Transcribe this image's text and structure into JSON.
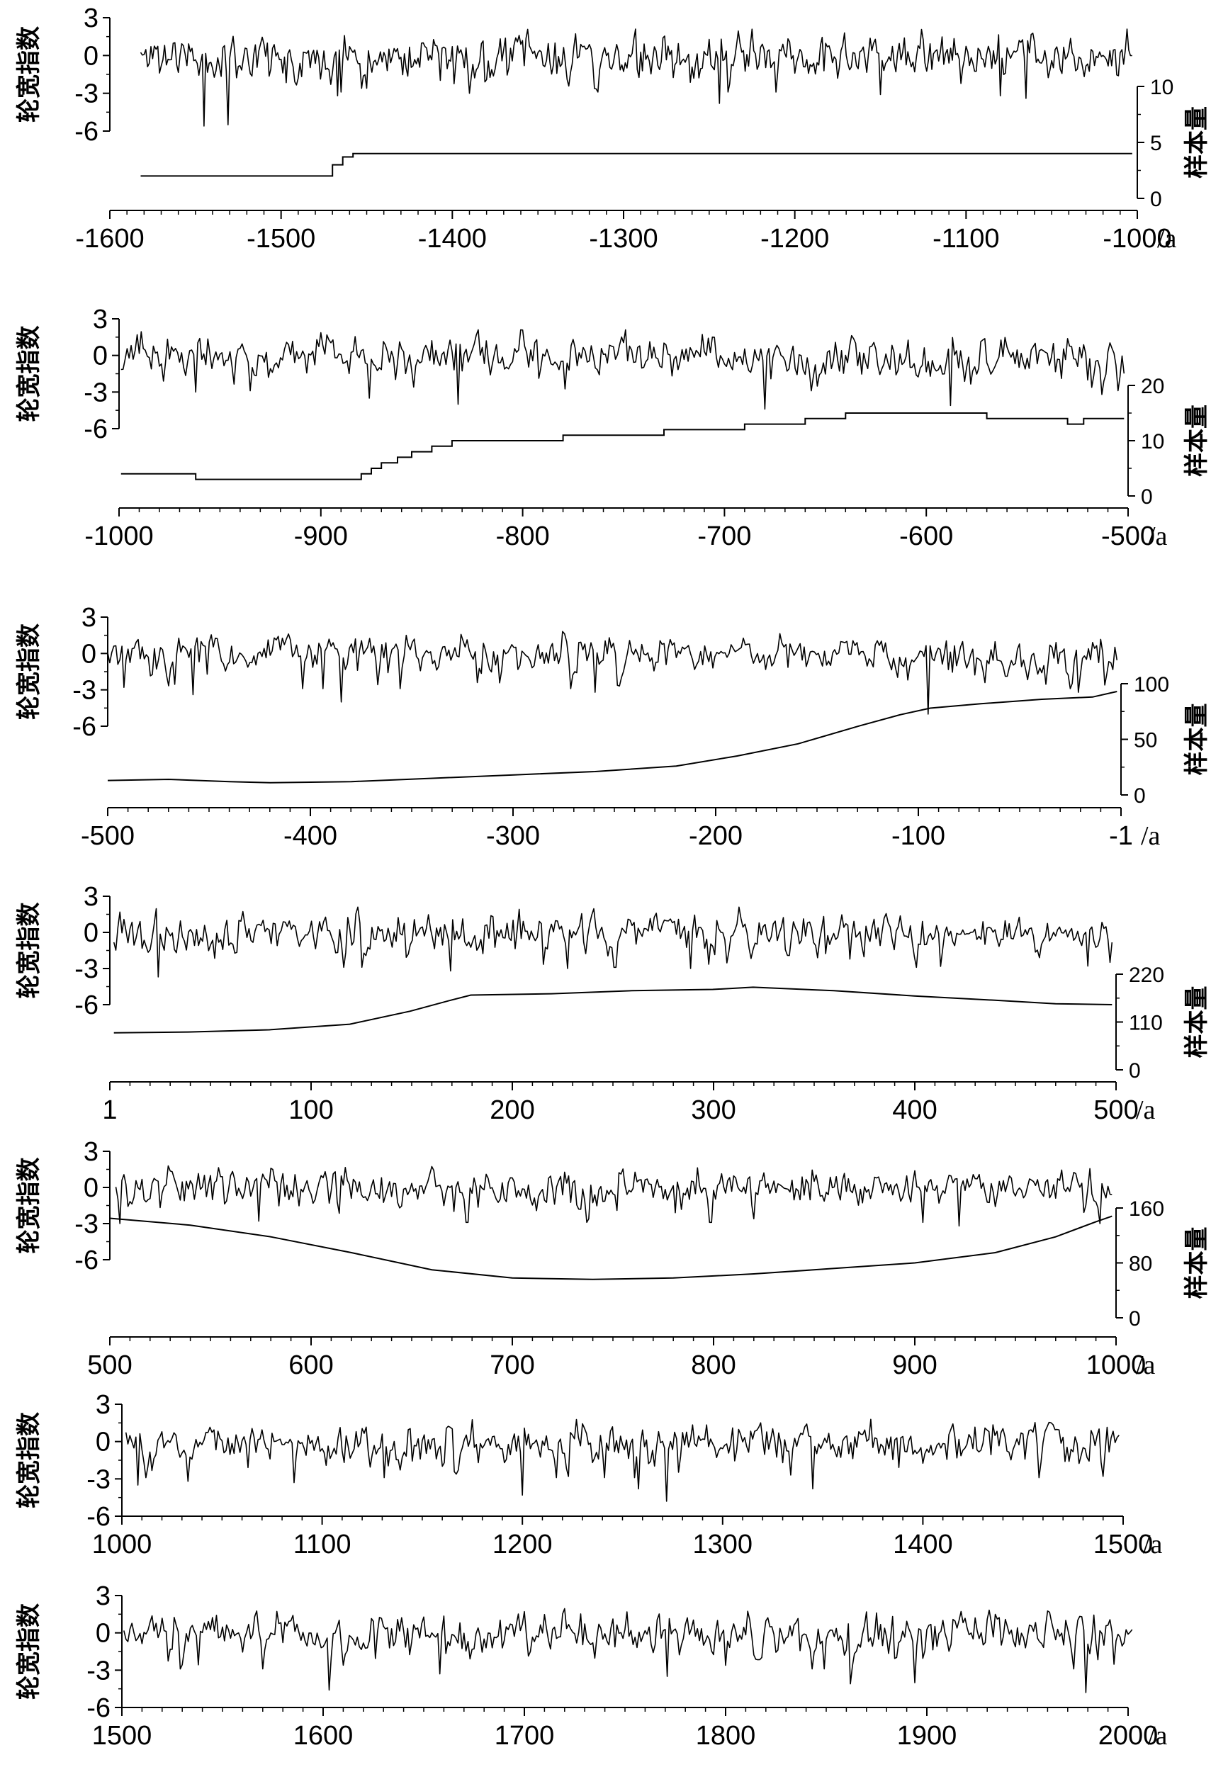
{
  "chart_data": [
    {
      "type": "line",
      "title": "",
      "xlabel": "/a",
      "x_range": [
        -1600,
        -1000
      ],
      "x_tick_labels": [
        "-1600",
        "-1500",
        "-1400",
        "-1300",
        "-1200",
        "-1100",
        "-1000"
      ],
      "series": [
        {
          "name": "轮宽指数",
          "axis": "left",
          "ylabel": "轮宽指数",
          "ylim": [
            -6,
            3
          ],
          "y_tick_labels": [
            "3",
            "0",
            "-3",
            "-6"
          ],
          "x_start": -1582,
          "x_end": -1003,
          "step": 1,
          "mean": 0,
          "std": 1.05,
          "seed": 11,
          "spikes": [
            [
              -1545,
              -5.6
            ],
            [
              -1531,
              -5.5
            ],
            [
              -1467,
              -3.2
            ],
            [
              -1390,
              -3.0
            ],
            [
              -1244,
              -3.8
            ],
            [
              -1150,
              -3.1
            ],
            [
              -1080,
              -3.2
            ],
            [
              -1065,
              -3.4
            ]
          ]
        },
        {
          "name": "样本量",
          "axis": "right",
          "ylabel": "样本量",
          "ylim": [
            0,
            10
          ],
          "y_tick_labels": [
            "10",
            "5",
            "0"
          ],
          "points": [
            [
              -1582,
              2
            ],
            [
              -1470,
              2
            ],
            [
              -1470,
              3
            ],
            [
              -1464,
              3
            ],
            [
              -1464,
              3.7
            ],
            [
              -1458,
              3.7
            ],
            [
              -1458,
              4
            ],
            [
              -1003,
              4
            ]
          ]
        }
      ]
    },
    {
      "type": "line",
      "title": "",
      "xlabel": "/a",
      "x_range": [
        -1000,
        -500
      ],
      "x_tick_labels": [
        "-1000",
        "-900",
        "-800",
        "-700",
        "-600",
        "-500"
      ],
      "series": [
        {
          "name": "轮宽指数",
          "axis": "left",
          "ylabel": "轮宽指数",
          "ylim": [
            -6,
            3
          ],
          "y_tick_labels": [
            "3",
            "0",
            "-3",
            "-6"
          ],
          "x_start": -999,
          "x_end": -502,
          "step": 1,
          "mean": 0,
          "std": 1.05,
          "seed": 23,
          "spikes": [
            [
              -962,
              -3.0
            ],
            [
              -876,
              -3.5
            ],
            [
              -832,
              -4.0
            ],
            [
              -680,
              -4.4
            ],
            [
              -588,
              -4.1
            ],
            [
              -513,
              -3.2
            ]
          ]
        },
        {
          "name": "样本量",
          "axis": "right",
          "ylabel": "样本量",
          "ylim": [
            0,
            20
          ],
          "y_tick_labels": [
            "20",
            "10",
            "0"
          ],
          "points": [
            [
              -999,
              4
            ],
            [
              -962,
              4
            ],
            [
              -962,
              3
            ],
            [
              -880,
              3
            ],
            [
              -880,
              4
            ],
            [
              -875,
              4
            ],
            [
              -875,
              5
            ],
            [
              -870,
              5
            ],
            [
              -870,
              6
            ],
            [
              -862,
              6
            ],
            [
              -862,
              7
            ],
            [
              -855,
              7
            ],
            [
              -855,
              8
            ],
            [
              -845,
              8
            ],
            [
              -845,
              9
            ],
            [
              -835,
              9
            ],
            [
              -835,
              10
            ],
            [
              -780,
              10
            ],
            [
              -780,
              11
            ],
            [
              -730,
              11
            ],
            [
              -730,
              12
            ],
            [
              -690,
              12
            ],
            [
              -690,
              13
            ],
            [
              -660,
              13
            ],
            [
              -660,
              14
            ],
            [
              -640,
              14
            ],
            [
              -640,
              15
            ],
            [
              -570,
              15
            ],
            [
              -570,
              14
            ],
            [
              -530,
              14
            ],
            [
              -530,
              13
            ],
            [
              -522,
              13
            ],
            [
              -522,
              14
            ],
            [
              -502,
              14
            ]
          ]
        }
      ]
    },
    {
      "type": "line",
      "title": "",
      "xlabel": "/a",
      "x_range": [
        -500,
        -1
      ],
      "x_tick_labels": [
        "-500",
        "-400",
        "-300",
        "-200",
        "-100",
        "-1"
      ],
      "series": [
        {
          "name": "轮宽指数",
          "axis": "left",
          "ylabel": "轮宽指数",
          "ylim": [
            -6,
            3
          ],
          "y_tick_labels": [
            "3",
            "0",
            "-3",
            "-6"
          ],
          "x_start": -500,
          "x_end": -3,
          "step": 1,
          "mean": 0,
          "std": 0.95,
          "seed": 37,
          "spikes": [
            [
              -492,
              -2.8
            ],
            [
              -458,
              -3.4
            ],
            [
              -385,
              -4.0
            ],
            [
              -260,
              -3.2
            ],
            [
              -96,
              -5.0
            ],
            [
              -22,
              -3.2
            ]
          ]
        },
        {
          "name": "样本量",
          "axis": "right",
          "ylabel": "样本量",
          "ylim": [
            0,
            100
          ],
          "y_tick_labels": [
            "100",
            "50",
            "0"
          ],
          "points": [
            [
              -500,
              13
            ],
            [
              -470,
              14
            ],
            [
              -440,
              12
            ],
            [
              -420,
              11
            ],
            [
              -380,
              12
            ],
            [
              -340,
              15
            ],
            [
              -300,
              18
            ],
            [
              -260,
              21
            ],
            [
              -220,
              26
            ],
            [
              -190,
              35
            ],
            [
              -160,
              46
            ],
            [
              -130,
              62
            ],
            [
              -110,
              72
            ],
            [
              -95,
              78
            ],
            [
              -70,
              82
            ],
            [
              -40,
              86
            ],
            [
              -15,
              88
            ],
            [
              -3,
              93
            ]
          ]
        }
      ]
    },
    {
      "type": "line",
      "title": "",
      "xlabel": "/a",
      "x_range": [
        1,
        500
      ],
      "x_tick_labels": [
        "1",
        "100",
        "200",
        "300",
        "400",
        "500"
      ],
      "series": [
        {
          "name": "轮宽指数",
          "axis": "left",
          "ylabel": "轮宽指数",
          "ylim": [
            -6,
            3
          ],
          "y_tick_labels": [
            "3",
            "0",
            "-3",
            "-6"
          ],
          "x_start": 3,
          "x_end": 498,
          "step": 1,
          "mean": 0,
          "std": 0.95,
          "seed": 53,
          "spikes": [
            [
              25,
              -3.7
            ],
            [
              170,
              -3.2
            ],
            [
              228,
              -3.0
            ],
            [
              289,
              -3.0
            ],
            [
              486,
              -2.8
            ]
          ]
        },
        {
          "name": "样本量",
          "axis": "right",
          "ylabel": "样本量",
          "ylim": [
            0,
            220
          ],
          "y_tick_labels": [
            "220",
            "110",
            "0"
          ],
          "points": [
            [
              3,
              85
            ],
            [
              40,
              87
            ],
            [
              80,
              92
            ],
            [
              120,
              105
            ],
            [
              150,
              135
            ],
            [
              170,
              160
            ],
            [
              180,
              172
            ],
            [
              220,
              175
            ],
            [
              260,
              182
            ],
            [
              300,
              185
            ],
            [
              320,
              190
            ],
            [
              360,
              182
            ],
            [
              400,
              170
            ],
            [
              440,
              160
            ],
            [
              470,
              152
            ],
            [
              498,
              150
            ]
          ]
        }
      ]
    },
    {
      "type": "line",
      "title": "",
      "xlabel": "/a",
      "x_range": [
        500,
        1000
      ],
      "x_tick_labels": [
        "500",
        "600",
        "700",
        "800",
        "900",
        "1000"
      ],
      "series": [
        {
          "name": "轮宽指数",
          "axis": "left",
          "ylabel": "轮宽指数",
          "ylim": [
            -6,
            3
          ],
          "y_tick_labels": [
            "3",
            "0",
            "-3",
            "-6"
          ],
          "x_start": 503,
          "x_end": 998,
          "step": 1,
          "mean": 0,
          "std": 0.95,
          "seed": 71,
          "spikes": [
            [
              505,
              -3.0
            ],
            [
              574,
              -2.8
            ],
            [
              738,
              -2.6
            ],
            [
              820,
              -2.6
            ],
            [
              922,
              -3.2
            ],
            [
              992,
              -3.0
            ]
          ]
        },
        {
          "name": "样本量",
          "axis": "right",
          "ylabel": "样本量",
          "ylim": [
            0,
            160
          ],
          "y_tick_labels": [
            "160",
            "80",
            "0"
          ],
          "points": [
            [
              500,
              145
            ],
            [
              540,
              135
            ],
            [
              580,
              118
            ],
            [
              620,
              95
            ],
            [
              660,
              70
            ],
            [
              700,
              58
            ],
            [
              740,
              56
            ],
            [
              780,
              58
            ],
            [
              820,
              64
            ],
            [
              860,
              72
            ],
            [
              900,
              80
            ],
            [
              940,
              95
            ],
            [
              970,
              118
            ],
            [
              990,
              140
            ],
            [
              998,
              148
            ]
          ]
        }
      ]
    },
    {
      "type": "line",
      "title": "",
      "xlabel": "/a",
      "x_range": [
        1000,
        1500
      ],
      "x_tick_labels": [
        "1000",
        "1100",
        "1200",
        "1300",
        "1400",
        "1500"
      ],
      "series": [
        {
          "name": "轮宽指数",
          "axis": "left",
          "ylabel": "轮宽指数",
          "ylim": [
            -6,
            3
          ],
          "y_tick_labels": [
            "3",
            "0",
            "-3",
            "-6"
          ],
          "x_start": 1002,
          "x_end": 1498,
          "step": 1,
          "mean": 0,
          "std": 1.0,
          "seed": 89,
          "spikes": [
            [
              1008,
              -3.5
            ],
            [
              1033,
              -3.2
            ],
            [
              1086,
              -3.3
            ],
            [
              1200,
              -4.3
            ],
            [
              1258,
              -3.8
            ],
            [
              1272,
              -4.8
            ],
            [
              1345,
              -3.8
            ],
            [
              1490,
              -2.8
            ]
          ]
        }
      ]
    },
    {
      "type": "line",
      "title": "",
      "xlabel": "/a",
      "x_range": [
        1500,
        2000
      ],
      "x_tick_labels": [
        "1500",
        "1600",
        "1700",
        "1800",
        "1900",
        "2000"
      ],
      "series": [
        {
          "name": "轮宽指数",
          "axis": "left",
          "ylabel": "轮宽指数",
          "ylim": [
            -6,
            3
          ],
          "y_tick_labels": [
            "3",
            "0",
            "-3",
            "-6"
          ],
          "x_start": 1501,
          "x_end": 2002,
          "step": 1,
          "mean": 0,
          "std": 1.0,
          "seed": 97,
          "spikes": [
            [
              1603,
              -4.6
            ],
            [
              1658,
              -3.3
            ],
            [
              1771,
              -3.5
            ],
            [
              1862,
              -4.1
            ],
            [
              1894,
              -4.0
            ],
            [
              1979,
              -4.8
            ]
          ]
        }
      ]
    }
  ]
}
